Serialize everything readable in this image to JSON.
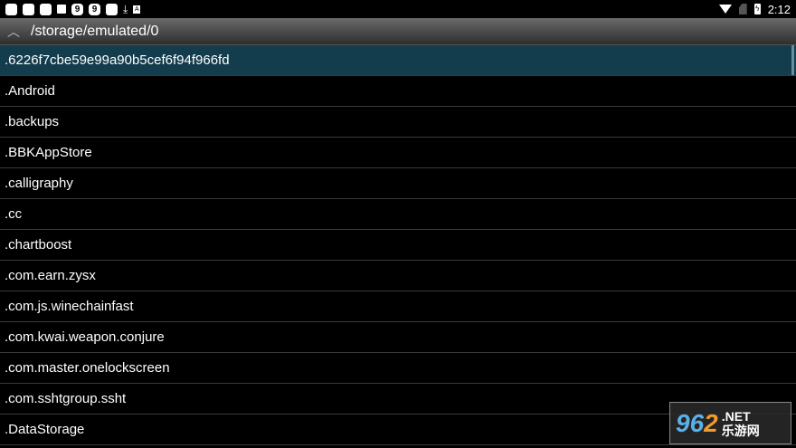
{
  "status_bar": {
    "time": "2:12",
    "icons": [
      "notification",
      "notification",
      "notification",
      "notification",
      "app-9",
      "app-9",
      "notification",
      "download",
      "keyboard-a"
    ],
    "right_icons": [
      "wifi-icon",
      "no-sim-icon",
      "battery-charging-icon"
    ]
  },
  "header": {
    "path": "/storage/emulated/0",
    "up_icon": "chevron-up"
  },
  "files": [
    ".6226f7cbe59e99a90b5cef6f94f966fd",
    ".Android",
    ".backups",
    ".BBKAppStore",
    ".calligraphy",
    ".cc",
    ".chartboost",
    ".com.earn.zysx",
    ".com.js.winechainfast",
    ".com.kwai.weapon.conjure",
    ".com.master.onelockscreen",
    ".com.sshtgroup.ssht",
    ".DataStorage"
  ],
  "selected_index": 0,
  "colors": {
    "selected": "#133d4d",
    "header_top": "#6a6a6a"
  },
  "watermark": {
    "num1": "96",
    "num2": "2",
    "net": ".NET",
    "cn": "乐游网"
  }
}
